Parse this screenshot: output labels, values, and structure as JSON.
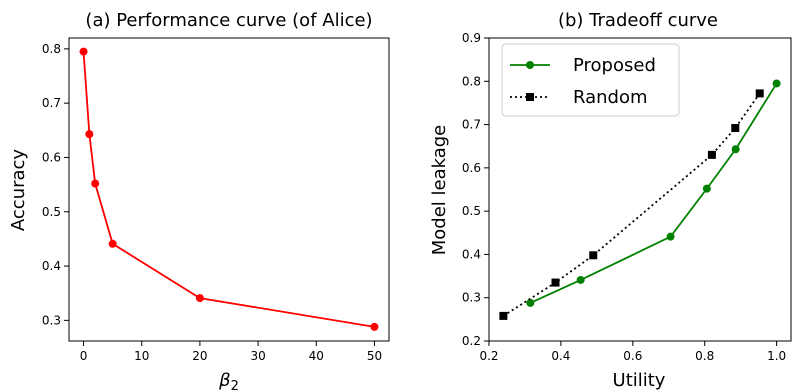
{
  "chart_data": [
    {
      "type": "line",
      "title": "(a) Performance curve (of Alice)",
      "xlabel": "β",
      "xlabel_sub": "2",
      "ylabel": "Accuracy",
      "xlim": [
        -2.5,
        52.5
      ],
      "ylim": [
        0.262,
        0.82
      ],
      "xticks": [
        0,
        10,
        20,
        30,
        40,
        50
      ],
      "yticks": [
        0.3,
        0.4,
        0.5,
        0.6,
        0.7,
        0.8
      ],
      "grid": false,
      "series": [
        {
          "color": "#ff0000",
          "marker": "circle",
          "linestyle": "solid",
          "x": [
            0,
            1,
            2,
            5,
            20,
            50
          ],
          "y": [
            0.795,
            0.643,
            0.552,
            0.441,
            0.341,
            0.288
          ]
        }
      ]
    },
    {
      "type": "line",
      "title": "(b) Tradeoff curve",
      "xlabel": "Utility",
      "ylabel": "Model leakage",
      "xlim": [
        0.2,
        1.04
      ],
      "ylim": [
        0.2,
        0.9
      ],
      "xticks": [
        0.2,
        0.4,
        0.6,
        0.8,
        1.0
      ],
      "yticks": [
        0.2,
        0.3,
        0.4,
        0.5,
        0.6,
        0.7,
        0.8,
        0.9
      ],
      "grid": false,
      "legend_position": "top-left",
      "series": [
        {
          "name": "Proposed",
          "color": "#008000",
          "marker": "circle",
          "linestyle": "solid",
          "x": [
            0.315,
            0.455,
            0.705,
            0.806,
            0.886,
            1.0
          ],
          "y": [
            0.288,
            0.341,
            0.441,
            0.552,
            0.643,
            0.795
          ]
        },
        {
          "name": "Random",
          "color": "#000000",
          "marker": "square",
          "linestyle": "dotted",
          "x": [
            0.24,
            0.385,
            0.49,
            0.82,
            0.885,
            0.953
          ],
          "y": [
            0.258,
            0.335,
            0.398,
            0.63,
            0.692,
            0.772
          ]
        }
      ]
    }
  ]
}
